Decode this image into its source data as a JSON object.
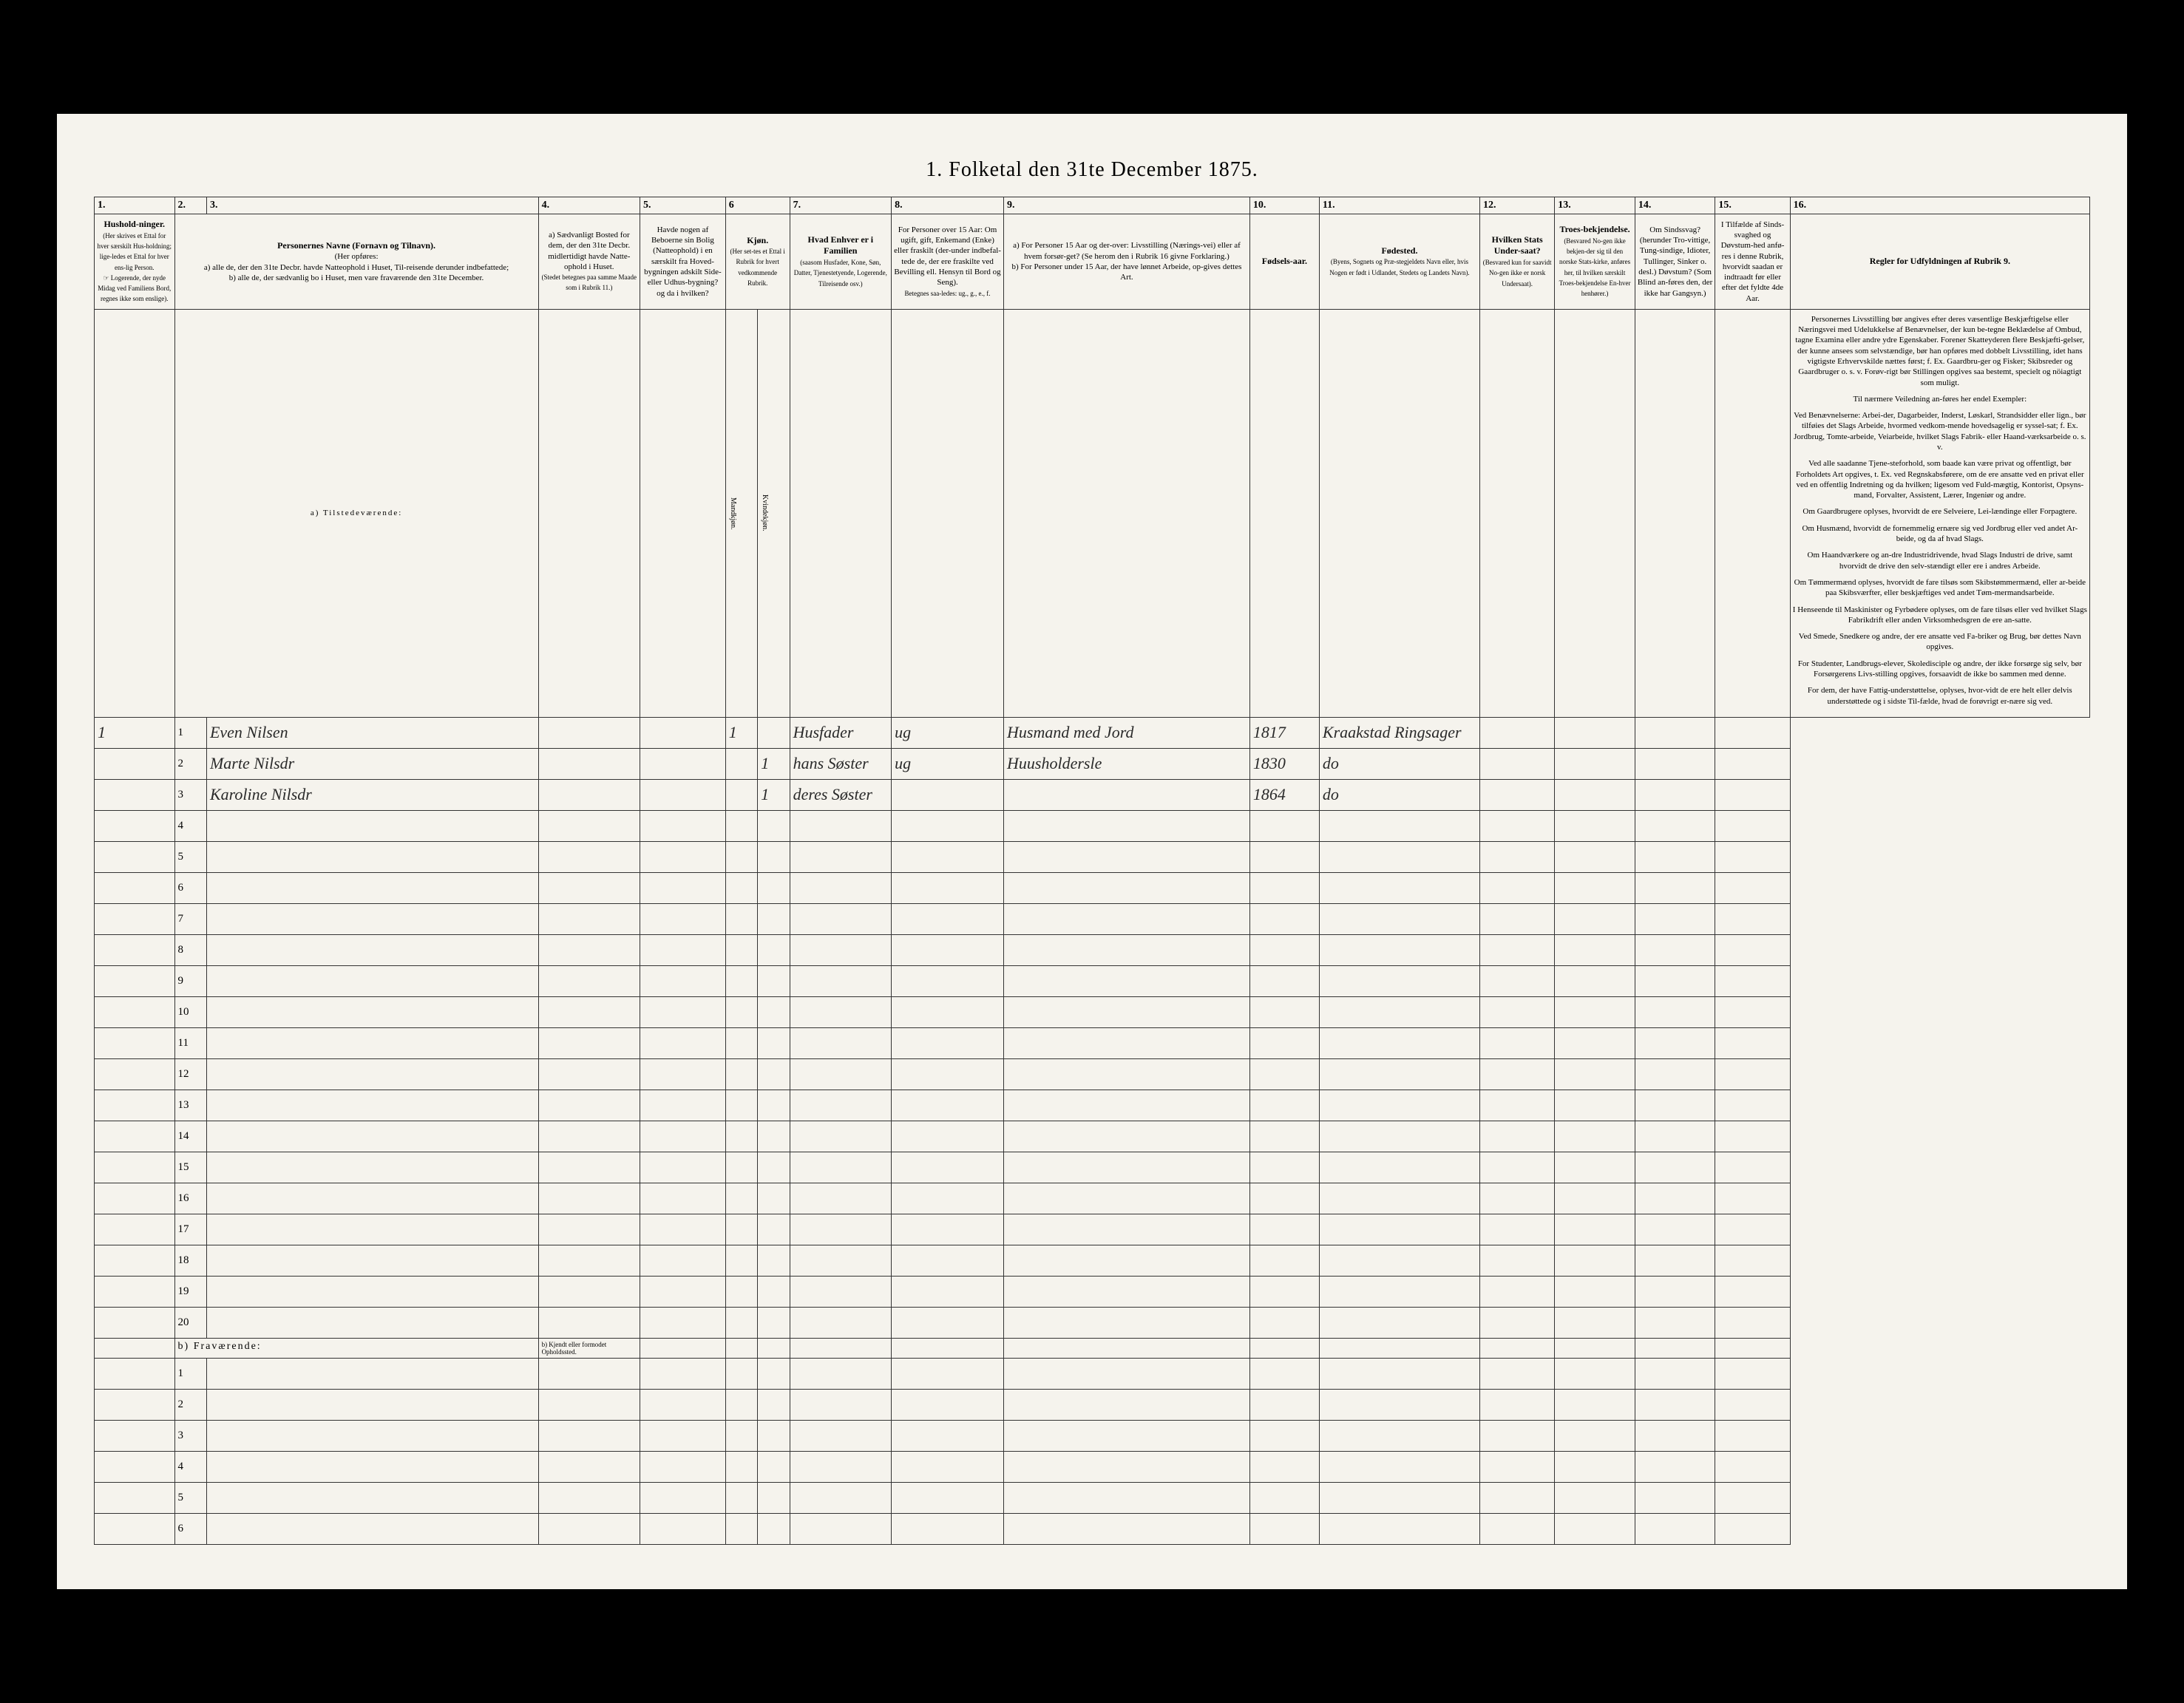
{
  "title": "1. Folketal den 31te December 1875.",
  "columns": {
    "nums": [
      "1.",
      "2.",
      "3.",
      "4.",
      "5.",
      "6",
      "7.",
      "8.",
      "9.",
      "10.",
      "11.",
      "12.",
      "13.",
      "14.",
      "15.",
      "16."
    ],
    "h1": "Hushold-ninger.",
    "h1_sub": "(Her skrives et Ettal for hver særskilt Hus-holdning; lige-ledes et Ettal for hver ens-lig Person.",
    "h1_note": "☞ Logerende, der nyde Midag ved Familiens Bord, regnes ikke som enslige).",
    "h3": "Personernes Navne (Fornavn og Tilnavn).",
    "h3_sub": "(Her opføres:",
    "h3_a": "a) alle de, der den 31te Decbr. havde Natteophold i Huset, Til-reisende derunder indbefattede;",
    "h3_b": "b) alle de, der sædvanlig bo i Huset, men vare fraværende den 31te December.",
    "h4": "a) Sædvanligt Bosted for dem, der den 31te Decbr. midlertidigt havde Natte-ophold i Huset.",
    "h4_note": "(Stedet betegnes paa samme Maade som i Rubrik 11.)",
    "h5": "Havde nogen af Beboerne sin Bolig (Natteophold) i en særskilt fra Hoved-bygningen adskilt Side-eller Udhus-bygning? og da i hvilken?",
    "h6": "Kjøn.",
    "h6_sub": "(Her set-tes et Ettal i Rubrik for hvert vedkommende Rubrik.",
    "h6_m": "Mandkjøn.",
    "h6_k": "Kvindekjøn.",
    "h7": "Hvad Enhver er i Familien",
    "h7_sub": "(saasom Husfader, Kone, Søn, Datter, Tjenestetyende, Logerende, Tilreisende osv.)",
    "h8": "For Personer over 15 Aar: Om ugift, gift, Enkemand (Enke) eller fraskilt (der-under indbefal-tede de, der ere fraskilte ved Bevilling ell. Hensyn til Bord og Seng).",
    "h8_note": "Betegnes saa-ledes: ug., g., e., f.",
    "h9_a": "a) For Personer 15 Aar og der-over: Livsstilling (Nærings-vei) eller af hvem forsør-get? (Se herom den i Rubrik 16 givne Forklaring.)",
    "h9_b": "b) For Personer under 15 Aar, der have lønnet Arbeide, op-gives dettes Art.",
    "h10": "Fødsels-aar.",
    "h11": "Fødested.",
    "h11_sub": "(Byens, Sognets og Præ-stegjeldets Navn eller, hvis Nogen er født i Udlandet, Stedets og Landets Navn).",
    "h12": "Hvilken Stats Under-saat?",
    "h12_sub": "(Besvared kun for saavidt No-gen ikke er norsk Undersaat).",
    "h13": "Troes-bekjendelse.",
    "h13_sub": "(Besvared No-gen ikke bekjen-der sig til den norske Stats-kirke, anføres her, til hvilken særskilt Troes-bekjendelse En-hver henhører.)",
    "h14": "Om Sindssvag? (herunder Tro-vittige, Tung-sindige, Idioter, Tullinger, Sinker o. desl.) Døvstum? (Som Blind an-føres den, der ikke har Gangsyn.)",
    "h15": "I Tilfælde af Sinds-svaghed og Døvstum-hed anfø-res i denne Rubrik, hvorvidt saadan er indtraadt før eller efter det fyldte 4de Aar.",
    "h16": "Regler for Udfyldningen af Rubrik 9."
  },
  "sections": {
    "present": "a) Tilstedeværende:",
    "absent": "b) Fraværende:",
    "absent_col4": "b) Kjendt eller formodet Opholdssted."
  },
  "rows": [
    {
      "n": "1",
      "fam": "1",
      "name": "Even Nilsen",
      "m": "1",
      "k": "",
      "rel": "Husfader",
      "stat": "ug",
      "occ": "Husmand med Jord",
      "year": "1817",
      "place": "Kraakstad Ringsager"
    },
    {
      "n": "2",
      "fam": "",
      "name": "Marte Nilsdr",
      "m": "",
      "k": "1",
      "rel": "hans Søster",
      "stat": "ug",
      "occ": "Huusholdersle",
      "year": "1830",
      "place": "do"
    },
    {
      "n": "3",
      "fam": "",
      "name": "Karoline Nilsdr",
      "m": "",
      "k": "1",
      "rel": "deres Søster",
      "stat": "",
      "occ": "",
      "year": "1864",
      "place": "do"
    }
  ],
  "empty_present": [
    "4",
    "5",
    "6",
    "7",
    "8",
    "9",
    "10",
    "11",
    "12",
    "13",
    "14",
    "15",
    "16",
    "17",
    "18",
    "19",
    "20"
  ],
  "empty_absent": [
    "1",
    "2",
    "3",
    "4",
    "5",
    "6"
  ],
  "instructions": {
    "p1": "Personernes Livsstilling bør angives efter deres væsentlige Beskjæftigelse eller Næringsvei med Udelukkelse af Benævnelser, der kun be-tegne Beklædelse af Ombud, tagne Examina eller andre ydre Egenskaber. Forener Skatteyderen flere Beskjæfti-gelser, der kunne ansees som selvstændige, bør han opføres med dobbelt Livsstilling, idet hans vigtigste Erhvervskilde nættes først; f. Ex. Gaardbru-ger og Fisker; Skibsreder og Gaardbruger o. s. v. Forøv-rigt bør Stillingen opgives saa bestemt, specielt og nöiagtigt som muligt.",
    "p2": "Til nærmere Veiledning an-føres her endel Exempler:",
    "p3": "Ved Benævnelserne: Arbei-der, Dagarbeider, Inderst, Løskarl, Strandsidder eller lign., bør tilføies det Slags Arbeide, hvormed vedkom-mende hovedsagelig er syssel-sat; f. Ex. Jordbrug, Tomte-arbeide, Veiarbeide, hvilket Slags Fabrik- eller Haand-værksarbeide o. s. v.",
    "p4": "Ved alle saadanne Tjene-steforhold, som baade kan være privat og offentligt, bør Forholdets Art opgives, t. Ex. ved Regnskabsførere, om de ere ansatte ved en privat eller ved en offentlig Indretning og da hvilken; ligesom ved Fuld-mægtig, Kontorist, Opsyns-mand, Forvalter, Assistent, Lærer, Ingeniør og andre.",
    "p5": "Om Gaardbrugere oplyses, hvorvidt de ere Selveiere, Lei-lændinge eller Forpagtere.",
    "p6": "Om Husmænd, hvorvidt de fornemmelig ernære sig ved Jordbrug eller ved andet Ar-beide, og da af hvad Slags.",
    "p7": "Om Haandværkere og an-dre Industridrivende, hvad Slags Industri de drive, samt hvorvidt de drive den selv-stændigt eller ere i andres Arbeide.",
    "p8": "Om Tømmermænd oplyses, hvorvidt de fare tilsøs som Skibstømmermænd, eller ar-beide paa Skibsværfter, eller beskjæftiges ved andet Tøm-mermandsarbeide.",
    "p9": "I Henseende til Maskinister og Fyrbødere oplyses, om de fare tilsøs eller ved hvilket Slags Fabrikdrift eller anden Virksomhedsgren de ere an-satte.",
    "p10": "Ved Smede, Snedkere og andre, der ere ansatte ved Fa-briker og Brug, bør dettes Navn opgives.",
    "p11": "For Studenter, Landbrugs-elever, Skoledisciple og andre, der ikke forsørge sig selv, bør Forsørgerens Livs-stilling opgives, forsaavidt de ikke bo sammen med denne.",
    "p12": "For dem, der have Fattig-understøttelse, oplyses, hvor-vidt de ere helt eller delvis understøttede og i sidste Til-fælde, hvad de forøvrigt er-nære sig ved."
  }
}
